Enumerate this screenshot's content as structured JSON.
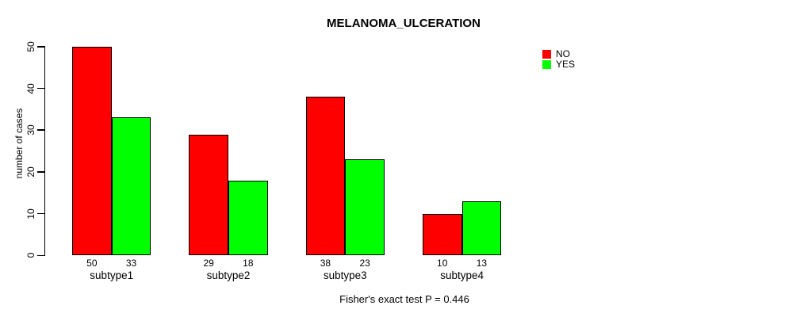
{
  "title": "MELANOMA_ULCERATION",
  "y_axis": {
    "label": "number of cases",
    "ticks": [
      0,
      10,
      20,
      30,
      40,
      50
    ]
  },
  "legend": {
    "items": [
      {
        "label": "NO",
        "color": "#ff0000"
      },
      {
        "label": "YES",
        "color": "#00ff00"
      }
    ]
  },
  "footnote": "Fisher's exact test P = 0.446",
  "chart_data": {
    "type": "bar",
    "title": "MELANOMA_ULCERATION",
    "xlabel": "",
    "ylabel": "number of cases",
    "ylim": [
      0,
      50
    ],
    "grid": false,
    "legend_position": "top-right",
    "bar_value_labels_shown": true,
    "categories": [
      "subtype1",
      "subtype2",
      "subtype3",
      "subtype4"
    ],
    "series": [
      {
        "name": "NO",
        "color": "#ff0000",
        "values": [
          50,
          29,
          38,
          10
        ]
      },
      {
        "name": "YES",
        "color": "#00ff00",
        "values": [
          33,
          18,
          23,
          13
        ]
      }
    ],
    "footnote": "Fisher's exact test P = 0.446"
  }
}
